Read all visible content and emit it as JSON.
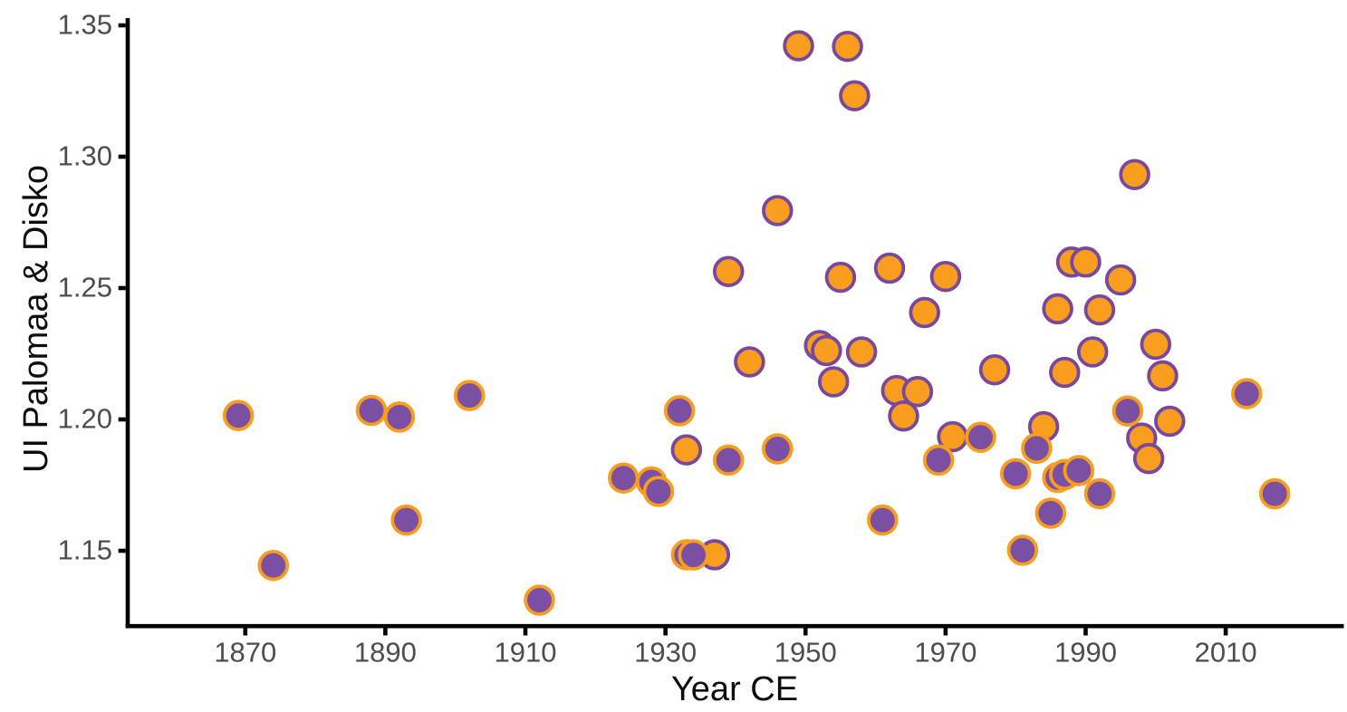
{
  "chart_data": {
    "type": "scatter",
    "title": "",
    "xlabel": "Year CE",
    "ylabel": "UI Palomaa & Disko",
    "x_ticks": [
      1870,
      1890,
      1910,
      1930,
      1950,
      1970,
      1990,
      2010
    ],
    "x_tick_labels": [
      "1870",
      "1890",
      "1910",
      "1930",
      "1950",
      "1970",
      "1990",
      "2010"
    ],
    "y_ticks": [
      1.15,
      1.2,
      1.25,
      1.3,
      1.35
    ],
    "y_tick_labels": [
      "1.15",
      "1.20",
      "1.25",
      "1.30",
      "1.35"
    ],
    "xlim": [
      1853.2,
      2026.9
    ],
    "ylim": [
      1.1213,
      1.3528
    ],
    "grid": false,
    "legend": false,
    "background": "#ffffff",
    "axis_color": "#000000",
    "tick_label_color": "#4d4d4d",
    "axis_title_color": "#0d0d0d",
    "series": [
      {
        "name": "orange",
        "fill": "#F89D1E",
        "stroke": "#78489F",
        "points": [
          [
            1933,
            1.1884
          ],
          [
            1937,
            1.1485
          ],
          [
            1939,
            1.2563
          ],
          [
            1942,
            1.2219
          ],
          [
            1946,
            1.2795
          ],
          [
            1949,
            1.3422
          ],
          [
            1952,
            1.2281
          ],
          [
            1953,
            1.2262
          ],
          [
            1954,
            1.2143
          ],
          [
            1955,
            1.2541
          ],
          [
            1956,
            1.342
          ],
          [
            1957,
            1.3232
          ],
          [
            1958,
            1.2257
          ],
          [
            1962,
            1.2576
          ],
          [
            1963,
            1.211
          ],
          [
            1964,
            1.2013
          ],
          [
            1966,
            1.2106
          ],
          [
            1967,
            1.2407
          ],
          [
            1970,
            1.2544
          ],
          [
            1971,
            1.1934
          ],
          [
            1977,
            1.2189
          ],
          [
            1984,
            1.1972
          ],
          [
            1986,
            1.2421
          ],
          [
            1987,
            1.2179
          ],
          [
            1988,
            1.2599
          ],
          [
            1990,
            1.2599
          ],
          [
            1991,
            1.2257
          ],
          [
            1992,
            1.2417
          ],
          [
            1995,
            1.2531
          ],
          [
            1997,
            1.2932
          ],
          [
            1998,
            1.1929
          ],
          [
            1999,
            1.1851
          ],
          [
            2000,
            1.2286
          ],
          [
            2001,
            1.2166
          ],
          [
            2002,
            1.1993
          ]
        ]
      },
      {
        "name": "purple",
        "fill": "#7B4FA2",
        "stroke": "#F89D1E",
        "points": [
          [
            1869,
            1.2015
          ],
          [
            1874,
            1.1444
          ],
          [
            1888,
            1.2034
          ],
          [
            1892,
            1.2009
          ],
          [
            1893,
            1.1617
          ],
          [
            1902,
            1.2091
          ],
          [
            1912,
            1.1312
          ],
          [
            1924,
            1.1777
          ],
          [
            1928,
            1.1762
          ],
          [
            1929,
            1.1726
          ],
          [
            1932,
            1.2033
          ],
          [
            1933,
            1.1485
          ],
          [
            1934,
            1.1484
          ],
          [
            1939,
            1.1845
          ],
          [
            1946,
            1.1888
          ],
          [
            1961,
            1.1617
          ],
          [
            1969,
            1.1845
          ],
          [
            1975,
            1.1932
          ],
          [
            1980,
            1.1793
          ],
          [
            1981,
            1.1502
          ],
          [
            1983,
            1.189
          ],
          [
            1985,
            1.1643
          ],
          [
            1986,
            1.1779
          ],
          [
            1987,
            1.179
          ],
          [
            1989,
            1.1805
          ],
          [
            1992,
            1.1717
          ],
          [
            1996,
            1.2032
          ],
          [
            2013,
            1.2098
          ],
          [
            2017,
            1.1717
          ]
        ]
      }
    ]
  }
}
